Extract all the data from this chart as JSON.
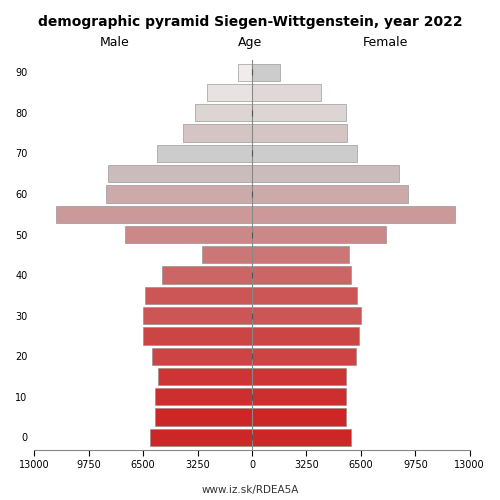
{
  "title": "demographic pyramid Siegen-Wittgenstein, year 2022",
  "male_label": "Male",
  "female_label": "Female",
  "age_label": "Age",
  "footer": "www.iz.sk/RDEA5A",
  "age_groups": [
    0,
    5,
    10,
    15,
    20,
    25,
    30,
    35,
    40,
    45,
    50,
    55,
    60,
    65,
    70,
    75,
    80,
    85,
    90
  ],
  "male_values": [
    6100,
    5800,
    5800,
    5600,
    6000,
    6500,
    6500,
    6400,
    5400,
    3000,
    7600,
    11700,
    8700,
    8600,
    5700,
    4100,
    3400,
    2700,
    850
  ],
  "female_values": [
    5900,
    5600,
    5600,
    5600,
    6200,
    6400,
    6500,
    6300,
    5900,
    5800,
    8000,
    12100,
    9300,
    8800,
    6300,
    5700,
    5600,
    4100,
    1700
  ],
  "xlim": 13000,
  "xticks": [
    13000,
    9750,
    6500,
    3250,
    0,
    3250,
    6500,
    9750,
    13000
  ],
  "bar_height": 0.85,
  "background": "#ffffff",
  "male_colors": [
    "#cd2626",
    "#cd2626",
    "#cd2f2f",
    "#cd3535",
    "#cc4444",
    "#cc4545",
    "#cc5555",
    "#cc5656",
    "#cc6666",
    "#cc7777",
    "#cc8888",
    "#cc9999",
    "#ccaaaa",
    "#ccbbbb",
    "#cccccc",
    "#d4c4c4",
    "#ddd4d4",
    "#e8e2e2",
    "#f0ecec"
  ],
  "female_colors": [
    "#cd2626",
    "#cd2626",
    "#cd2f2f",
    "#cd3535",
    "#cc4444",
    "#cc4545",
    "#cc5555",
    "#cc5656",
    "#cc6666",
    "#cc7777",
    "#cc8888",
    "#cc9999",
    "#ccaaaa",
    "#ccbbbb",
    "#cccccc",
    "#d4c4c4",
    "#ddd4d4",
    "#e0d8d8",
    "#cccccc"
  ],
  "edgecolor": "#888888",
  "linewidth": 0.4
}
